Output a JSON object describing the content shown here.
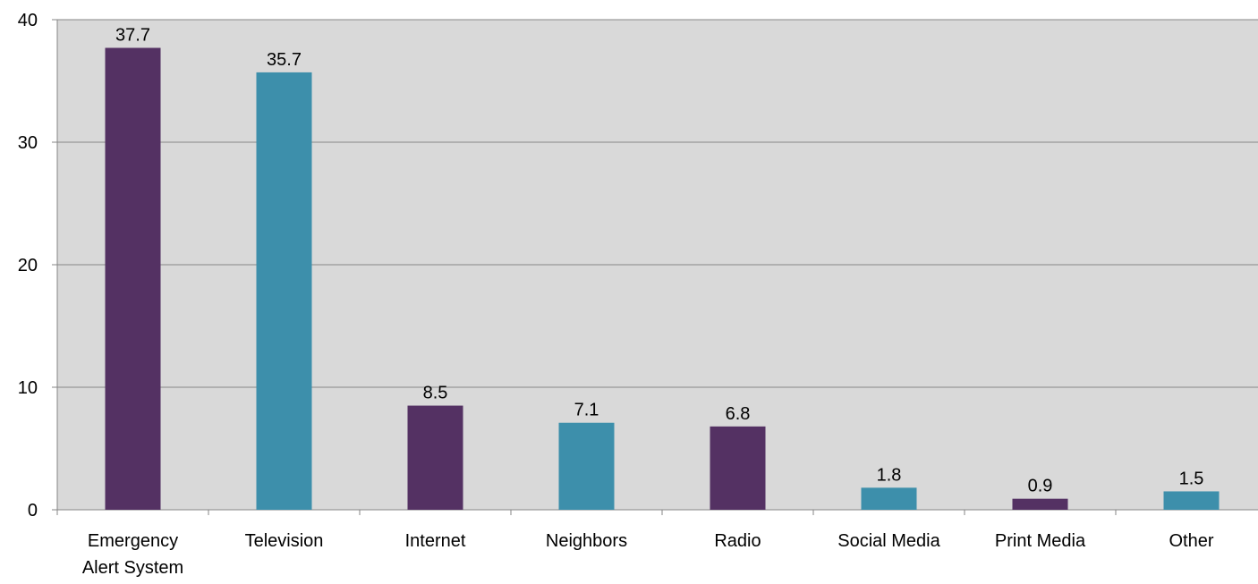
{
  "chart_data": {
    "type": "bar",
    "title": "",
    "xlabel": "",
    "ylabel": "",
    "ylim": [
      0,
      40
    ],
    "yticks": [
      0,
      10,
      20,
      30,
      40
    ],
    "grid": true,
    "legend": "none",
    "categories": [
      [
        "Emergency",
        "Alert System"
      ],
      [
        "Television"
      ],
      [
        "Internet"
      ],
      [
        "Neighbors"
      ],
      [
        "Radio"
      ],
      [
        "Social Media"
      ],
      [
        "Print Media"
      ],
      [
        "Other"
      ]
    ],
    "values": [
      37.7,
      35.7,
      8.5,
      7.1,
      6.8,
      1.8,
      0.9,
      1.5
    ],
    "data_labels": [
      "37.7",
      "35.7",
      "8.5",
      "7.1",
      "6.8",
      "1.8",
      "0.9",
      "1.5"
    ],
    "bar_colors": [
      "#543163",
      "#3d8fab",
      "#543163",
      "#3d8fab",
      "#543163",
      "#3d8fab",
      "#543163",
      "#3d8fab"
    ],
    "plot_background": "#d9d9d9",
    "gridline_color": "#868686"
  }
}
